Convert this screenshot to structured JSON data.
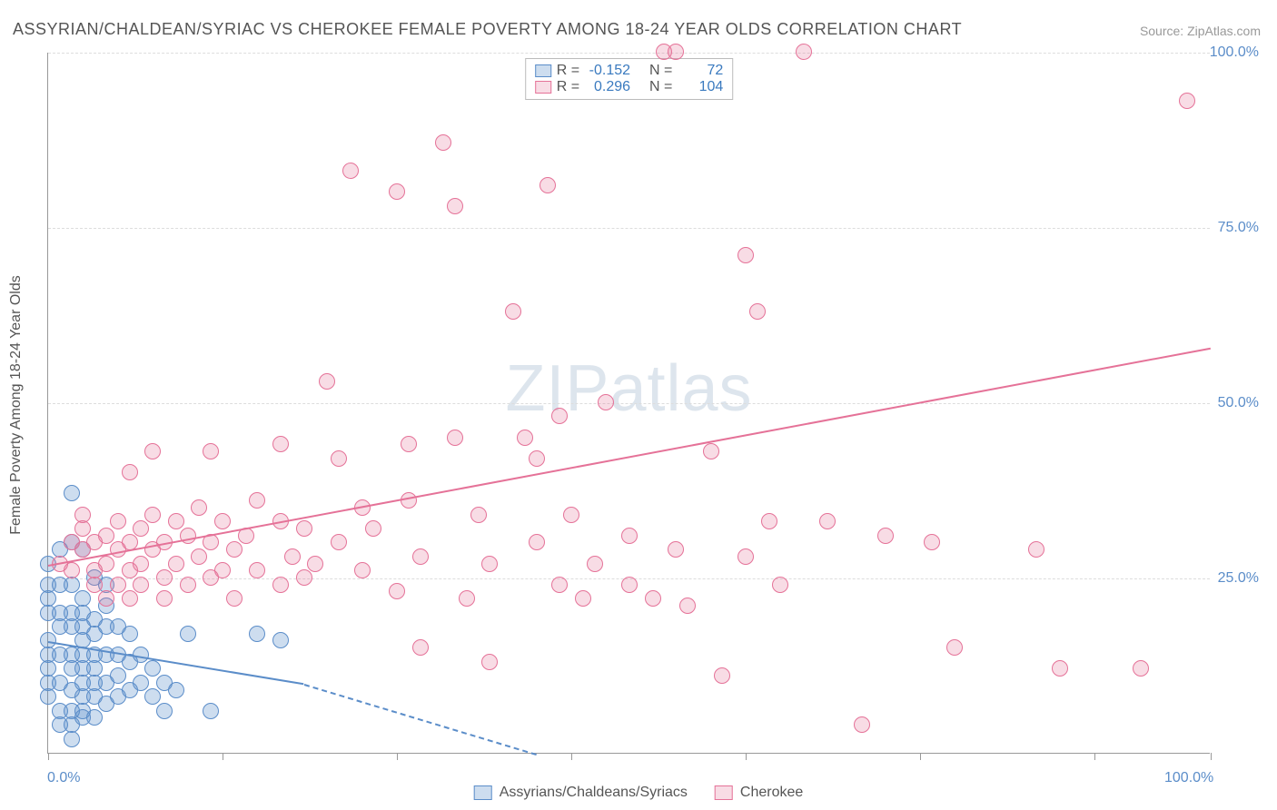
{
  "title": "ASSYRIAN/CHALDEAN/SYRIAC VS CHEROKEE FEMALE POVERTY AMONG 18-24 YEAR OLDS CORRELATION CHART",
  "source": "Source: ZipAtlas.com",
  "watermark": {
    "zip": "ZIP",
    "atlas": "atlas"
  },
  "ylabel": "Female Poverty Among 18-24 Year Olds",
  "chart": {
    "type": "scatter",
    "xlim": [
      0,
      100
    ],
    "ylim": [
      0,
      100
    ],
    "x_ticks": [
      0,
      15,
      30,
      45,
      60,
      75,
      90,
      100
    ],
    "y_gridlines": [
      25,
      50,
      75,
      100
    ],
    "x_labels": [
      {
        "val": 0,
        "text": "0.0%"
      },
      {
        "val": 100,
        "text": "100.0%"
      }
    ],
    "y_labels": [
      {
        "val": 25,
        "text": "25.0%"
      },
      {
        "val": 50,
        "text": "50.0%"
      },
      {
        "val": 75,
        "text": "75.0%"
      },
      {
        "val": 100,
        "text": "100.0%"
      }
    ],
    "background_color": "#ffffff",
    "grid_color": "#dddddd",
    "axis_color": "#999999",
    "marker_radius": 9,
    "marker_stroke_width": 1.5,
    "series": [
      {
        "name": "Assyrians/Chaldeans/Syriacs",
        "fill": "rgba(91,141,201,0.30)",
        "stroke": "#5b8dc9",
        "R": "-0.152",
        "N": "72",
        "trend": {
          "x1": 0,
          "y1": 16,
          "x2": 22,
          "y2": 10,
          "dash_x2": 42,
          "dash_y2": 0
        },
        "points": [
          [
            0,
            24
          ],
          [
            0,
            20
          ],
          [
            0,
            16
          ],
          [
            0,
            14
          ],
          [
            0,
            12
          ],
          [
            0,
            10
          ],
          [
            0,
            8
          ],
          [
            0,
            27
          ],
          [
            0,
            22
          ],
          [
            1,
            29
          ],
          [
            1,
            24
          ],
          [
            1,
            20
          ],
          [
            1,
            18
          ],
          [
            1,
            14
          ],
          [
            1,
            10
          ],
          [
            1,
            6
          ],
          [
            1,
            4
          ],
          [
            2,
            37
          ],
          [
            2,
            30
          ],
          [
            2,
            24
          ],
          [
            2,
            20
          ],
          [
            2,
            18
          ],
          [
            2,
            14
          ],
          [
            2,
            12
          ],
          [
            2,
            9
          ],
          [
            2,
            6
          ],
          [
            2,
            4
          ],
          [
            2,
            2
          ],
          [
            3,
            22
          ],
          [
            3,
            20
          ],
          [
            3,
            18
          ],
          [
            3,
            16
          ],
          [
            3,
            14
          ],
          [
            3,
            12
          ],
          [
            3,
            10
          ],
          [
            3,
            8
          ],
          [
            3,
            6
          ],
          [
            3,
            5
          ],
          [
            3,
            29
          ],
          [
            4,
            19
          ],
          [
            4,
            17
          ],
          [
            4,
            14
          ],
          [
            4,
            12
          ],
          [
            4,
            10
          ],
          [
            4,
            8
          ],
          [
            4,
            5
          ],
          [
            4,
            25
          ],
          [
            5,
            21
          ],
          [
            5,
            18
          ],
          [
            5,
            14
          ],
          [
            5,
            10
          ],
          [
            5,
            7
          ],
          [
            5,
            24
          ],
          [
            6,
            18
          ],
          [
            6,
            14
          ],
          [
            6,
            11
          ],
          [
            6,
            8
          ],
          [
            7,
            17
          ],
          [
            7,
            13
          ],
          [
            7,
            9
          ],
          [
            8,
            14
          ],
          [
            8,
            10
          ],
          [
            9,
            12
          ],
          [
            9,
            8
          ],
          [
            10,
            10
          ],
          [
            10,
            6
          ],
          [
            11,
            9
          ],
          [
            12,
            17
          ],
          [
            14,
            6
          ],
          [
            18,
            17
          ],
          [
            20,
            16
          ]
        ]
      },
      {
        "name": "Cherokee",
        "fill": "rgba(229,114,152,0.25)",
        "stroke": "#e57298",
        "R": "0.296",
        "N": "104",
        "trend": {
          "x1": 0,
          "y1": 27,
          "x2": 100,
          "y2": 58
        },
        "points": [
          [
            1,
            27
          ],
          [
            2,
            30
          ],
          [
            2,
            26
          ],
          [
            3,
            34
          ],
          [
            3,
            29
          ],
          [
            3,
            32
          ],
          [
            4,
            30
          ],
          [
            4,
            26
          ],
          [
            4,
            24
          ],
          [
            5,
            31
          ],
          [
            5,
            27
          ],
          [
            5,
            22
          ],
          [
            6,
            29
          ],
          [
            6,
            33
          ],
          [
            6,
            24
          ],
          [
            7,
            30
          ],
          [
            7,
            26
          ],
          [
            7,
            40
          ],
          [
            7,
            22
          ],
          [
            8,
            32
          ],
          [
            8,
            27
          ],
          [
            8,
            24
          ],
          [
            9,
            29
          ],
          [
            9,
            34
          ],
          [
            9,
            43
          ],
          [
            10,
            30
          ],
          [
            10,
            25
          ],
          [
            10,
            22
          ],
          [
            11,
            33
          ],
          [
            11,
            27
          ],
          [
            12,
            31
          ],
          [
            12,
            24
          ],
          [
            13,
            28
          ],
          [
            13,
            35
          ],
          [
            14,
            43
          ],
          [
            14,
            30
          ],
          [
            14,
            25
          ],
          [
            15,
            33
          ],
          [
            15,
            26
          ],
          [
            16,
            29
          ],
          [
            16,
            22
          ],
          [
            17,
            31
          ],
          [
            18,
            36
          ],
          [
            18,
            26
          ],
          [
            20,
            33
          ],
          [
            20,
            24
          ],
          [
            20,
            44
          ],
          [
            21,
            28
          ],
          [
            22,
            32
          ],
          [
            22,
            25
          ],
          [
            23,
            27
          ],
          [
            24,
            53
          ],
          [
            25,
            42
          ],
          [
            25,
            30
          ],
          [
            26,
            83
          ],
          [
            27,
            35
          ],
          [
            27,
            26
          ],
          [
            28,
            32
          ],
          [
            30,
            23
          ],
          [
            30,
            80
          ],
          [
            31,
            44
          ],
          [
            31,
            36
          ],
          [
            32,
            28
          ],
          [
            32,
            15
          ],
          [
            34,
            87
          ],
          [
            35,
            45
          ],
          [
            35,
            78
          ],
          [
            36,
            22
          ],
          [
            37,
            34
          ],
          [
            38,
            27
          ],
          [
            38,
            13
          ],
          [
            40,
            63
          ],
          [
            41,
            45
          ],
          [
            42,
            30
          ],
          [
            42,
            42
          ],
          [
            43,
            81
          ],
          [
            44,
            48
          ],
          [
            44,
            24
          ],
          [
            45,
            34
          ],
          [
            46,
            22
          ],
          [
            47,
            27
          ],
          [
            48,
            50
          ],
          [
            50,
            31
          ],
          [
            50,
            24
          ],
          [
            52,
            22
          ],
          [
            53,
            100
          ],
          [
            54,
            29
          ],
          [
            54,
            100
          ],
          [
            55,
            21
          ],
          [
            57,
            43
          ],
          [
            58,
            11
          ],
          [
            60,
            71
          ],
          [
            60,
            28
          ],
          [
            61,
            63
          ],
          [
            62,
            33
          ],
          [
            63,
            24
          ],
          [
            65,
            100
          ],
          [
            67,
            33
          ],
          [
            70,
            4
          ],
          [
            72,
            31
          ],
          [
            76,
            30
          ],
          [
            78,
            15
          ],
          [
            85,
            29
          ],
          [
            87,
            12
          ],
          [
            94,
            12
          ],
          [
            98,
            93
          ]
        ]
      }
    ]
  },
  "stats_legend_labels": {
    "R": "R =",
    "N": "N ="
  },
  "bottom_legend": [
    {
      "name": "Assyrians/Chaldeans/Syriacs",
      "fill": "rgba(91,141,201,0.30)",
      "stroke": "#5b8dc9"
    },
    {
      "name": "Cherokee",
      "fill": "rgba(229,114,152,0.25)",
      "stroke": "#e57298"
    }
  ]
}
